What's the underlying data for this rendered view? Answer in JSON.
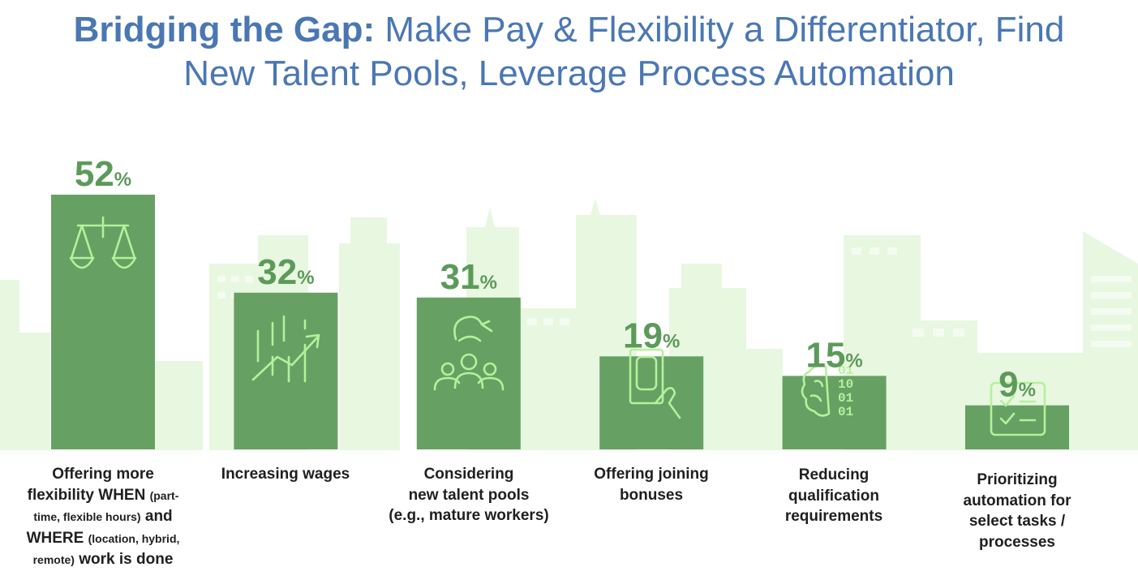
{
  "title": {
    "bold": "Bridging the Gap:",
    "line1_rest": " Make Pay & Flexibility a Differentiator, Find",
    "line2": "New Talent Pools, Leverage Process Automation"
  },
  "colors": {
    "title": "#4a77b4",
    "bar": "#67a063",
    "value_text": "#5c9a5a",
    "icon": "#b6f09b",
    "skyline": "#e8f7e0"
  },
  "chart_data": {
    "type": "bar",
    "unit": "%",
    "categories": [
      "Offering more flexibility WHEN (part-time, flexible hours) and WHERE (location, hybrid, remote) work is done",
      "Increasing wages",
      "Considering new talent pools (e.g., mature workers)",
      "Offering joining bonuses",
      "Reducing qualification requirements",
      "Prioritizing automation for select tasks / processes"
    ],
    "values": [
      52,
      32,
      31,
      19,
      15,
      9
    ],
    "value_labels": [
      "52",
      "32",
      "31",
      "19",
      "15",
      "9"
    ],
    "icons": [
      "scales-icon",
      "rising-chart-icon",
      "talent-pool-icon",
      "phone-payment-icon",
      "brain-binary-icon",
      "checklist-icon"
    ],
    "ylim": [
      0,
      52
    ],
    "grid": false,
    "legend": "none"
  },
  "labels": {
    "cat0": {
      "l1": "Offering more",
      "l2a": "flexibility WHEN ",
      "l2b": "(part-",
      "l3a": "time, flexible hours)",
      "l3b": " and",
      "l4a": "WHERE ",
      "l4b": "(location, hybrid,",
      "l5a": "remote)",
      "l5b": " work is done"
    },
    "cat1": {
      "l1": "Increasing wages"
    },
    "cat2": {
      "l1": "Considering",
      "l2": "new talent pools",
      "l3": "(e.g., mature workers)"
    },
    "cat3": {
      "l1": "Offering joining",
      "l2": "bonuses"
    },
    "cat4": {
      "l1": "Reducing",
      "l2": "qualification",
      "l3": "requirements"
    },
    "cat5": {
      "l1": "Prioritizing",
      "l2": "automation for",
      "l3": "select tasks /",
      "l4": "processes"
    }
  }
}
